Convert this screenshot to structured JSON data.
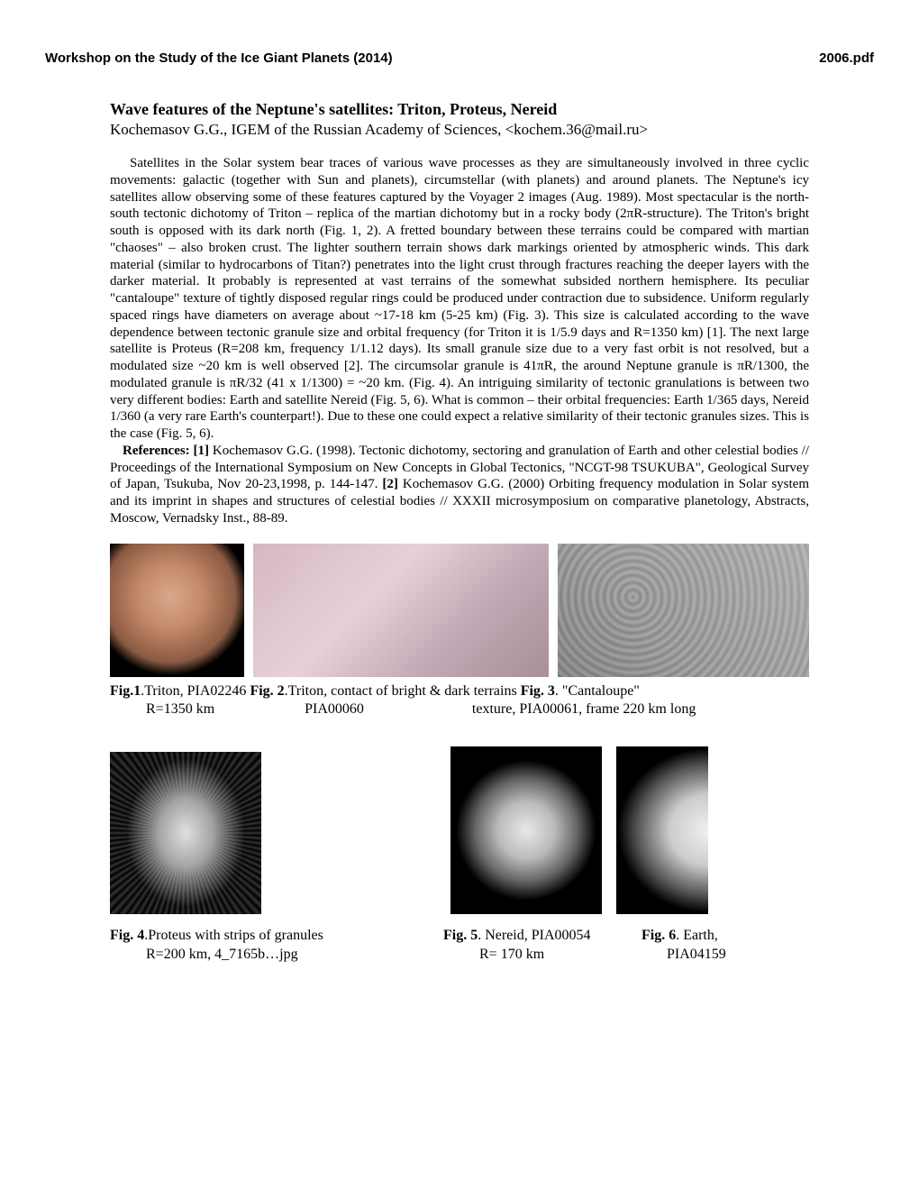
{
  "header": {
    "left": "Workshop on the Study of the Ice Giant Planets (2014)",
    "right": "2006.pdf"
  },
  "title": "Wave features of the Neptune's satellites: Triton, Proteus, Nereid",
  "author": "Kochemasov G.G., IGEM of the Russian Academy of Sciences, <kochem.36@mail.ru>",
  "para1": "Satellites in the Solar system bear traces of various wave processes as they are simultaneously involved in three cyclic movements: galactic (together with Sun and planets), circumstellar (with planets) and around planets. The Neptune's icy satellites allow observing some of these features captured by the Voyager 2 images (Aug. 1989). Most spectacular is the north-south tectonic dichotomy of Triton – replica of the martian dichotomy but in a rocky body (2πR-structure). The Triton's bright south is opposed with its dark north (Fig. 1, 2). A fretted boundary between these terrains could be compared with martian \"chaoses\" – also broken crust. The lighter southern terrain shows dark markings oriented by atmospheric winds. This dark material (similar to hydrocarbons of Titan?) penetrates into the light crust through fractures reaching the deeper layers with the darker material. It probably is represented at vast terrains of the somewhat subsided northern hemisphere. Its peculiar \"cantaloupe\" texture of tightly disposed regular rings could be produced under contraction due to subsidence. Uniform regularly spaced rings have diameters on average about ~17-18 km (5-25 km) (Fig. 3). This size is calculated according to the wave dependence between tectonic granule size and orbital frequency (for Triton it is 1/5.9 days and R=1350 km) [1]. The next large satellite is Proteus (R=208 km, frequency 1/1.12 days). Its small granule size due to a very fast orbit is not resolved, but a modulated size ~20 km is well observed [2]. The circumsolar granule is 41πR, the around Neptune granule is πR/1300, the modulated granule is πR/32 (41 x 1/1300) = ~20 km. (Fig. 4).      An intriguing similarity of tectonic granulations is between two very different bodies: Earth and satellite Nereid (Fig. 5, 6). What is common – their orbital frequencies: Earth 1/365 days, Nereid 1/360 (a very rare Earth's counterpart!). Due to these one could expect a relative similarity of their tectonic granules sizes. This is the case (Fig. 5, 6).",
  "refs_label": "References: [1]",
  "refs_text": " Kochemasov G.G. (1998). Tectonic dichotomy, sectoring and granulation of Earth and other celestial bodies // Proceedings of the International Symposium on New Concepts in Global Tectonics, \"NCGT-98 TSUKUBA\", Geological Survey of Japan, Tsukuba, Nov 20-23,1998, p. 144-147. ",
  "refs_label2": "[2]",
  "refs_text2": " Kochemasov G.G. (2000) Orbiting frequency modulation in Solar system and its imprint in shapes and structures of celestial bodies // XXXII microsymposium on comparative planetology, Abstracts, Moscow, Vernadsky Inst., 88-89.",
  "fig1_label": "Fig.1",
  "fig1_text": ".Triton, PIA02246  ",
  "fig2_label": "Fig. 2",
  "fig2_text": ".Triton, contact of bright & dark terrains  ",
  "fig3_label": "Fig. 3",
  "fig3_text": ". \"Cantaloupe\"",
  "row1_line2_a": "          R=1350 km                         PIA00060                              texture, PIA00061, frame 220 km long",
  "fig4_label": "Fig. 4",
  "fig4_text": ".Proteus with strips of granules",
  "fig5_label": "Fig. 5",
  "fig5_text": ". Nereid, PIA00054",
  "fig6_label": "Fig. 6",
  "fig6_text": ". Earth,",
  "row2_line2_left": "          R=200 km, 4_7165b…jpg",
  "row2_line2_mid": "          R= 170 km",
  "row2_line2_right": "       PIA04159"
}
